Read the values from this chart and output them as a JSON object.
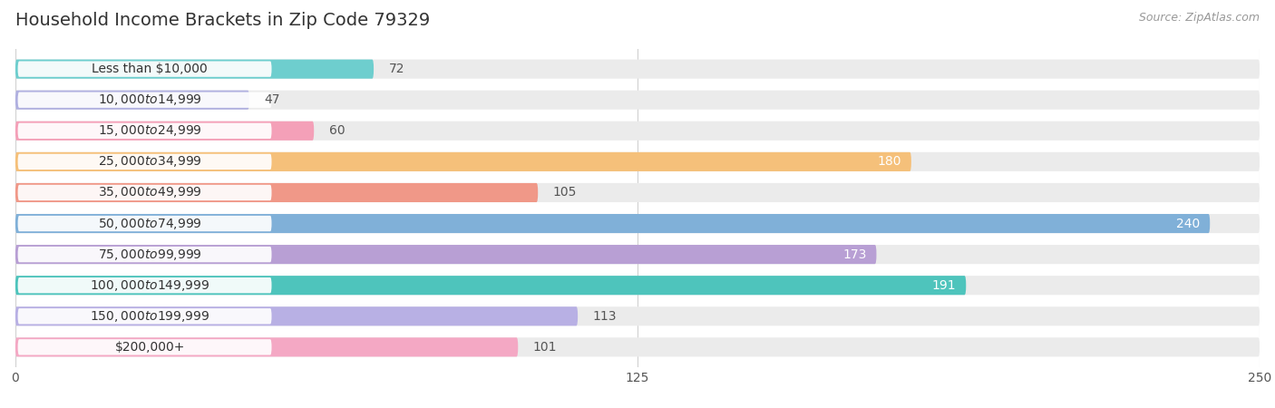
{
  "title": "Household Income Brackets in Zip Code 79329",
  "source": "Source: ZipAtlas.com",
  "categories": [
    "Less than $10,000",
    "$10,000 to $14,999",
    "$15,000 to $24,999",
    "$25,000 to $34,999",
    "$35,000 to $49,999",
    "$50,000 to $74,999",
    "$75,000 to $99,999",
    "$100,000 to $149,999",
    "$150,000 to $199,999",
    "$200,000+"
  ],
  "values": [
    72,
    47,
    60,
    180,
    105,
    240,
    173,
    191,
    113,
    101
  ],
  "bar_colors": [
    "#6ecece",
    "#b0b0e0",
    "#f4a0b8",
    "#f5c07a",
    "#f09888",
    "#80b0d8",
    "#b89fd4",
    "#4ec4bc",
    "#b8b0e4",
    "#f4a8c4"
  ],
  "label_colors": [
    "black",
    "black",
    "black",
    "white",
    "black",
    "white",
    "white",
    "white",
    "black",
    "black"
  ],
  "xlim": [
    0,
    250
  ],
  "xticks": [
    0,
    125,
    250
  ],
  "background_color": "#ffffff",
  "bar_background_color": "#ebebeb",
  "title_fontsize": 14,
  "source_fontsize": 9,
  "label_fontsize": 10,
  "value_fontsize": 10,
  "bar_height": 0.62
}
